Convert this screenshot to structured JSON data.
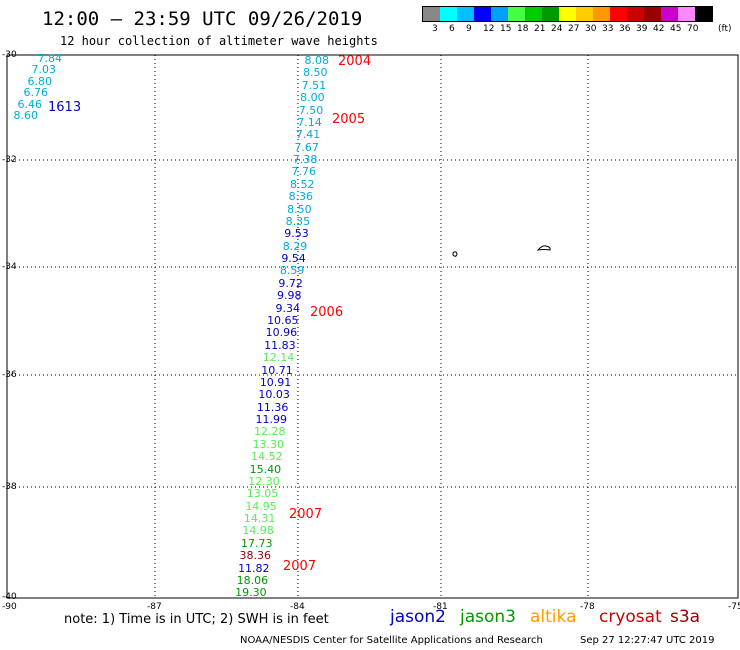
{
  "title": "12:00 – 23:59 UTC 09/26/2019",
  "subtitle": "12 hour collection of altimeter wave heights",
  "colorbar": {
    "unit": "(ft)",
    "ticks": [
      "3",
      "6",
      "9",
      "12",
      "15",
      "18",
      "21",
      "24",
      "27",
      "30",
      "33",
      "36",
      "39",
      "42",
      "45",
      "70"
    ],
    "colors": [
      "#888888",
      "#00ffff",
      "#00bfff",
      "#0000ff",
      "#00a0ff",
      "#44ff44",
      "#00cc00",
      "#009900",
      "#ffff00",
      "#ffcc00",
      "#ff9900",
      "#ff0000",
      "#cc0000",
      "#990000",
      "#cc00cc",
      "#ff88ff",
      "#000000"
    ]
  },
  "axes": {
    "lat_labels": [
      "-30",
      "-32",
      "-34",
      "-36",
      "-38",
      "-40"
    ],
    "lon_labels": [
      "-90",
      "-87",
      "-84",
      "-81",
      "-78",
      "-75"
    ]
  },
  "satellite_colors": {
    "jason2": "#0000cc",
    "jason3": "#009900",
    "altika": "#ff9900",
    "cryosat": "#cc0000",
    "s3a": "#990000",
    "cyan": "#00aadd",
    "lightgreen": "#55ee55"
  },
  "observations": {
    "track_left": [
      {
        "v": "7.84",
        "c": "cyan"
      },
      {
        "v": "7.03",
        "c": "cyan"
      },
      {
        "v": "6.80",
        "c": "cyan"
      },
      {
        "v": "6.76",
        "c": "cyan"
      },
      {
        "v": "6.46",
        "c": "cyan"
      },
      {
        "v": "8.60",
        "c": "cyan"
      }
    ],
    "track_main": [
      {
        "v": "8.08",
        "c": "cyan"
      },
      {
        "v": "8.50",
        "c": "cyan"
      },
      {
        "v": "7.51",
        "c": "cyan"
      },
      {
        "v": "8.00",
        "c": "cyan"
      },
      {
        "v": "7.50",
        "c": "cyan"
      },
      {
        "v": "7.14",
        "c": "cyan"
      },
      {
        "v": "7.41",
        "c": "cyan"
      },
      {
        "v": "7.67",
        "c": "cyan"
      },
      {
        "v": "7.38",
        "c": "cyan"
      },
      {
        "v": "7.76",
        "c": "cyan"
      },
      {
        "v": "8.52",
        "c": "cyan"
      },
      {
        "v": "8.36",
        "c": "cyan"
      },
      {
        "v": "8.50",
        "c": "cyan"
      },
      {
        "v": "8.35",
        "c": "cyan"
      },
      {
        "v": "9.53",
        "c": "jason2"
      },
      {
        "v": "8.29",
        "c": "cyan"
      },
      {
        "v": "9.54",
        "c": "jason2"
      },
      {
        "v": "8.59",
        "c": "cyan"
      },
      {
        "v": "9.72",
        "c": "jason2"
      },
      {
        "v": "9.98",
        "c": "jason2"
      },
      {
        "v": "9.34",
        "c": "jason2"
      },
      {
        "v": "10.65",
        "c": "jason2"
      },
      {
        "v": "10.96",
        "c": "jason2"
      },
      {
        "v": "11.83",
        "c": "jason2"
      },
      {
        "v": "12.14",
        "c": "lightgreen"
      },
      {
        "v": "10.71",
        "c": "jason2"
      },
      {
        "v": "10.91",
        "c": "jason2"
      },
      {
        "v": "10.03",
        "c": "jason2"
      },
      {
        "v": "11.36",
        "c": "jason2"
      },
      {
        "v": "11.99",
        "c": "jason2"
      },
      {
        "v": "12.28",
        "c": "lightgreen"
      },
      {
        "v": "13.30",
        "c": "lightgreen"
      },
      {
        "v": "14.52",
        "c": "lightgreen"
      },
      {
        "v": "15.40",
        "c": "jason3"
      },
      {
        "v": "12.30",
        "c": "lightgreen"
      },
      {
        "v": "13.05",
        "c": "lightgreen"
      },
      {
        "v": "14.95",
        "c": "lightgreen"
      },
      {
        "v": "14.31",
        "c": "lightgreen"
      },
      {
        "v": "14.98",
        "c": "lightgreen"
      },
      {
        "v": "17.73",
        "c": "jason3"
      },
      {
        "v": "38.36",
        "c": "s3a"
      },
      {
        "v": "11.82",
        "c": "jason2"
      },
      {
        "v": "18.06",
        "c": "jason3"
      },
      {
        "v": "19.30",
        "c": "jason3"
      }
    ]
  },
  "time_stamps": [
    {
      "label": "1613",
      "c": "jason2"
    },
    {
      "label": "2004",
      "c": "red"
    },
    {
      "label": "2005",
      "c": "red"
    },
    {
      "label": "2006",
      "c": "red"
    },
    {
      "label": "2007",
      "c": "red"
    },
    {
      "label": "2007",
      "c": "red"
    }
  ],
  "note": "note:  1) Time is in UTC;  2) SWH is in feet",
  "legend": {
    "jason2": "jason2",
    "jason3": "jason3",
    "altika": "altika",
    "cryosat": "cryosat",
    "s3a": "s3a"
  },
  "credit": "NOAA/NESDIS Center for Satellite Applications and Research",
  "timestamp": "Sep 27 12:27:47 UTC 2019"
}
